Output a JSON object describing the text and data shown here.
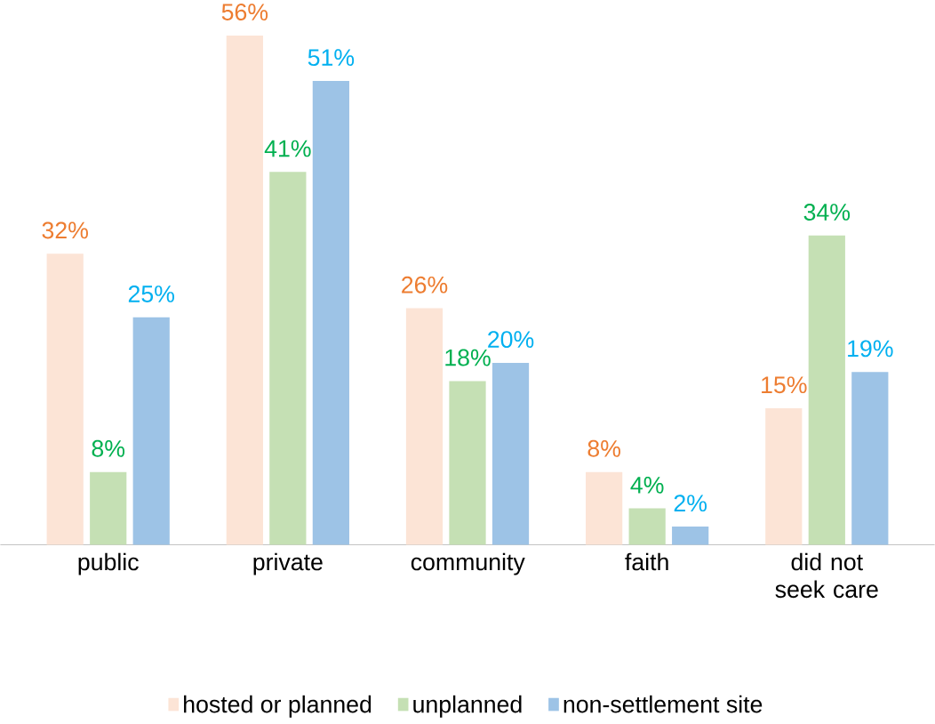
{
  "chart_data": {
    "type": "bar",
    "categories": [
      "public",
      "private",
      "community",
      "faith",
      "did not seek care"
    ],
    "series": [
      {
        "name": "hosted or planned",
        "color": "#fce4d6",
        "values": [
          32,
          56,
          26,
          8,
          15
        ],
        "value_labels": [
          "32%",
          "56%",
          "26%",
          "8%",
          "15%"
        ]
      },
      {
        "name": "unplanned",
        "color": "#c5e0b4",
        "values": [
          8,
          41,
          18,
          4,
          34
        ],
        "value_labels": [
          "8%",
          "41%",
          "18%",
          "4%",
          "34%"
        ]
      },
      {
        "name": "non-settlement site",
        "color": "#9dc3e6",
        "values": [
          25,
          51,
          20,
          2,
          19
        ],
        "value_labels": [
          "25%",
          "51%",
          "20%",
          "2%",
          "19%"
        ]
      }
    ],
    "legend": "bottom"
  }
}
